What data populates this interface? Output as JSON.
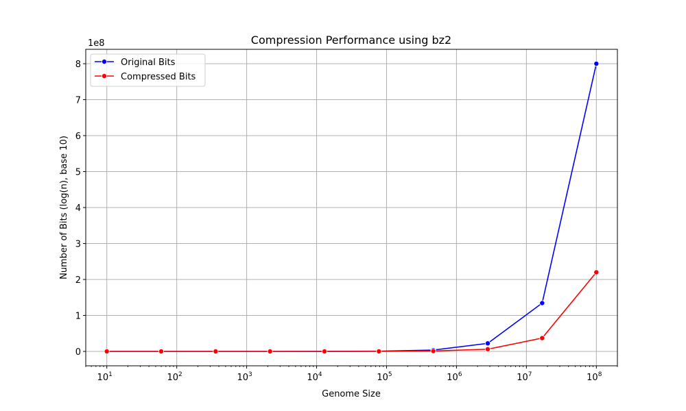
{
  "chart_data": {
    "type": "line",
    "title": "Compression Performance using bz2",
    "xlabel": "Genome Size",
    "ylabel": "Number of Bits (log(n), base 10)",
    "x_scale": "log",
    "x_range": [
      5,
      200000000
    ],
    "x_ticks": [
      {
        "value": 10,
        "base": "10",
        "exp": "1"
      },
      {
        "value": 100,
        "base": "10",
        "exp": "2"
      },
      {
        "value": 1000,
        "base": "10",
        "exp": "3"
      },
      {
        "value": 10000,
        "base": "10",
        "exp": "4"
      },
      {
        "value": 100000,
        "base": "10",
        "exp": "5"
      },
      {
        "value": 1000000,
        "base": "10",
        "exp": "6"
      },
      {
        "value": 10000000,
        "base": "10",
        "exp": "7"
      },
      {
        "value": 100000000,
        "base": "10",
        "exp": "8"
      }
    ],
    "y_range": [
      -0.4,
      8.4
    ],
    "y_offset_label": "1e8",
    "y_ticks": [
      "0",
      "1",
      "2",
      "3",
      "4",
      "5",
      "6",
      "7",
      "8"
    ],
    "grid": true,
    "legend_position": "top-left",
    "x": [
      10,
      60,
      360,
      2160,
      12960,
      77760,
      466560,
      2799360,
      16796160,
      100000000
    ],
    "series": [
      {
        "name": "Original Bits",
        "color": "#0000ff",
        "values": [
          8e-07,
          4.8e-06,
          2.88e-05,
          0.0001728,
          0.0010368,
          0.0062208,
          0.0373248,
          0.2239488,
          1.3436928,
          8.0
        ]
      },
      {
        "name": "Compressed Bits",
        "color": "#ff0000",
        "values": [
          5e-07,
          1e-06,
          8.2e-06,
          4.74e-05,
          0.00026,
          0.0016,
          0.0104,
          0.062,
          0.37,
          2.2
        ]
      }
    ]
  }
}
